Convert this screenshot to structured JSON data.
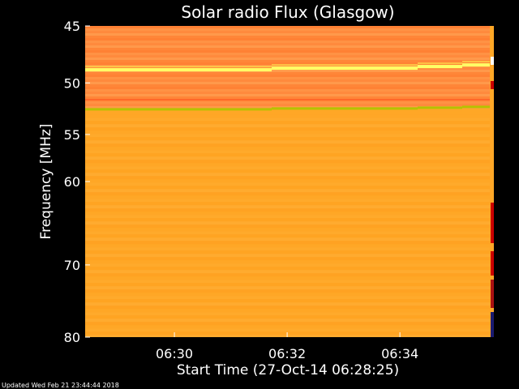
{
  "chart_data": {
    "type": "heatmap",
    "title": "Solar radio Flux (Glasgow)",
    "ylabel": "Frequency [MHz]",
    "xlabel": "Start Time (27-Oct-14 06:28:25)",
    "footer": "Updated Wed Feb 21 23:44:44 2018",
    "y_scale": "log",
    "ylim": [
      80,
      45
    ],
    "xlim": [
      "06:28:25",
      "06:35:40"
    ],
    "y_ticks": [
      45,
      50,
      55,
      60,
      70,
      80
    ],
    "y_tick_labels": [
      "45",
      "50",
      "55",
      "60",
      "70",
      "80"
    ],
    "x_ticks": [
      "06:30",
      "06:32",
      "06:34"
    ],
    "x_tick_labels": [
      "06:30",
      "06:32",
      "06:34"
    ],
    "colors": {
      "background": "#000000",
      "text": "#ffffff",
      "base": "#ffa726",
      "upper_band": "#ff8a3d",
      "bright_line": "#ffff66",
      "green_line": "#b5c200",
      "hot_edge": "#cc0000",
      "dark_edge": "#1a1a6e"
    },
    "bright_line_freq_mhz": 48.8,
    "green_line_freq_mhz": 52.5
  }
}
